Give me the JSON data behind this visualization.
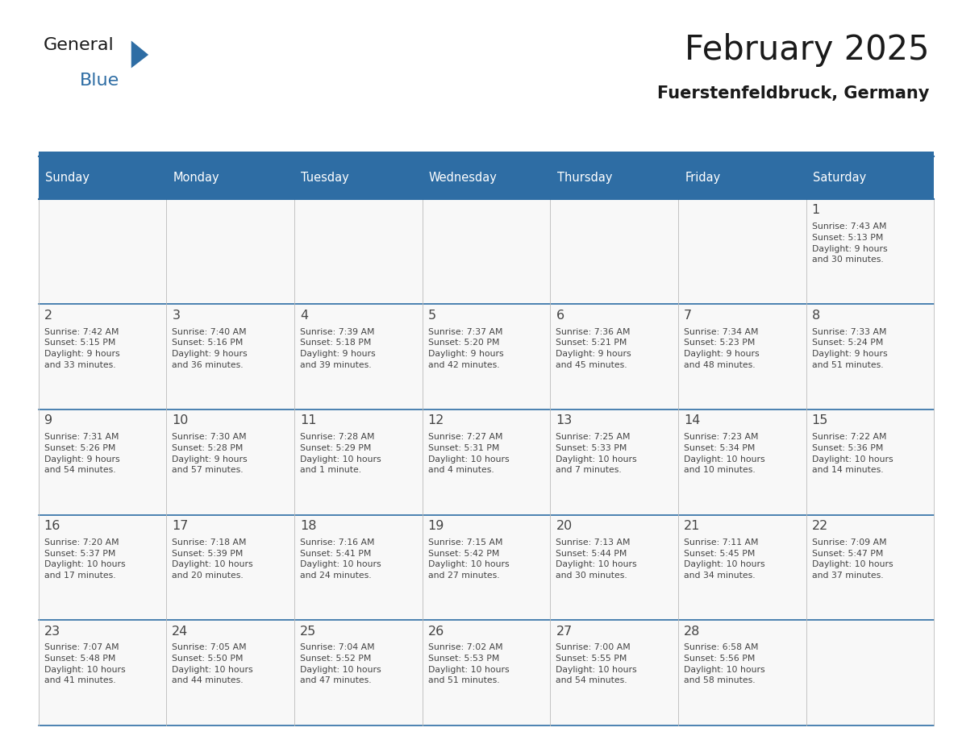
{
  "title": "February 2025",
  "subtitle": "Fuerstenfeldbruck, Germany",
  "header_bg": "#2E6DA4",
  "header_text": "#FFFFFF",
  "border_color": "#2E6DA4",
  "row_border_color": "#2E6DA4",
  "cell_bg": "#F8F8F8",
  "text_color": "#444444",
  "days_of_week": [
    "Sunday",
    "Monday",
    "Tuesday",
    "Wednesday",
    "Thursday",
    "Friday",
    "Saturday"
  ],
  "calendar_data": [
    [
      {
        "day": "",
        "info": ""
      },
      {
        "day": "",
        "info": ""
      },
      {
        "day": "",
        "info": ""
      },
      {
        "day": "",
        "info": ""
      },
      {
        "day": "",
        "info": ""
      },
      {
        "day": "",
        "info": ""
      },
      {
        "day": "1",
        "info": "Sunrise: 7:43 AM\nSunset: 5:13 PM\nDaylight: 9 hours\nand 30 minutes."
      }
    ],
    [
      {
        "day": "2",
        "info": "Sunrise: 7:42 AM\nSunset: 5:15 PM\nDaylight: 9 hours\nand 33 minutes."
      },
      {
        "day": "3",
        "info": "Sunrise: 7:40 AM\nSunset: 5:16 PM\nDaylight: 9 hours\nand 36 minutes."
      },
      {
        "day": "4",
        "info": "Sunrise: 7:39 AM\nSunset: 5:18 PM\nDaylight: 9 hours\nand 39 minutes."
      },
      {
        "day": "5",
        "info": "Sunrise: 7:37 AM\nSunset: 5:20 PM\nDaylight: 9 hours\nand 42 minutes."
      },
      {
        "day": "6",
        "info": "Sunrise: 7:36 AM\nSunset: 5:21 PM\nDaylight: 9 hours\nand 45 minutes."
      },
      {
        "day": "7",
        "info": "Sunrise: 7:34 AM\nSunset: 5:23 PM\nDaylight: 9 hours\nand 48 minutes."
      },
      {
        "day": "8",
        "info": "Sunrise: 7:33 AM\nSunset: 5:24 PM\nDaylight: 9 hours\nand 51 minutes."
      }
    ],
    [
      {
        "day": "9",
        "info": "Sunrise: 7:31 AM\nSunset: 5:26 PM\nDaylight: 9 hours\nand 54 minutes."
      },
      {
        "day": "10",
        "info": "Sunrise: 7:30 AM\nSunset: 5:28 PM\nDaylight: 9 hours\nand 57 minutes."
      },
      {
        "day": "11",
        "info": "Sunrise: 7:28 AM\nSunset: 5:29 PM\nDaylight: 10 hours\nand 1 minute."
      },
      {
        "day": "12",
        "info": "Sunrise: 7:27 AM\nSunset: 5:31 PM\nDaylight: 10 hours\nand 4 minutes."
      },
      {
        "day": "13",
        "info": "Sunrise: 7:25 AM\nSunset: 5:33 PM\nDaylight: 10 hours\nand 7 minutes."
      },
      {
        "day": "14",
        "info": "Sunrise: 7:23 AM\nSunset: 5:34 PM\nDaylight: 10 hours\nand 10 minutes."
      },
      {
        "day": "15",
        "info": "Sunrise: 7:22 AM\nSunset: 5:36 PM\nDaylight: 10 hours\nand 14 minutes."
      }
    ],
    [
      {
        "day": "16",
        "info": "Sunrise: 7:20 AM\nSunset: 5:37 PM\nDaylight: 10 hours\nand 17 minutes."
      },
      {
        "day": "17",
        "info": "Sunrise: 7:18 AM\nSunset: 5:39 PM\nDaylight: 10 hours\nand 20 minutes."
      },
      {
        "day": "18",
        "info": "Sunrise: 7:16 AM\nSunset: 5:41 PM\nDaylight: 10 hours\nand 24 minutes."
      },
      {
        "day": "19",
        "info": "Sunrise: 7:15 AM\nSunset: 5:42 PM\nDaylight: 10 hours\nand 27 minutes."
      },
      {
        "day": "20",
        "info": "Sunrise: 7:13 AM\nSunset: 5:44 PM\nDaylight: 10 hours\nand 30 minutes."
      },
      {
        "day": "21",
        "info": "Sunrise: 7:11 AM\nSunset: 5:45 PM\nDaylight: 10 hours\nand 34 minutes."
      },
      {
        "day": "22",
        "info": "Sunrise: 7:09 AM\nSunset: 5:47 PM\nDaylight: 10 hours\nand 37 minutes."
      }
    ],
    [
      {
        "day": "23",
        "info": "Sunrise: 7:07 AM\nSunset: 5:48 PM\nDaylight: 10 hours\nand 41 minutes."
      },
      {
        "day": "24",
        "info": "Sunrise: 7:05 AM\nSunset: 5:50 PM\nDaylight: 10 hours\nand 44 minutes."
      },
      {
        "day": "25",
        "info": "Sunrise: 7:04 AM\nSunset: 5:52 PM\nDaylight: 10 hours\nand 47 minutes."
      },
      {
        "day": "26",
        "info": "Sunrise: 7:02 AM\nSunset: 5:53 PM\nDaylight: 10 hours\nand 51 minutes."
      },
      {
        "day": "27",
        "info": "Sunrise: 7:00 AM\nSunset: 5:55 PM\nDaylight: 10 hours\nand 54 minutes."
      },
      {
        "day": "28",
        "info": "Sunrise: 6:58 AM\nSunset: 5:56 PM\nDaylight: 10 hours\nand 58 minutes."
      },
      {
        "day": "",
        "info": ""
      }
    ]
  ]
}
